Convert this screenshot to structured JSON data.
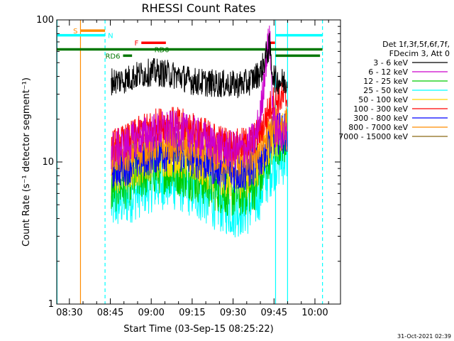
{
  "chart_data": {
    "type": "line",
    "title": "RHESSI Count Rates",
    "xlabel": "Start Time (03-Sep-15 08:25:22)",
    "ylabel": "Count Rate (s⁻¹ detector segment⁻¹)",
    "xlim_minutes": [
      0,
      104
    ],
    "ylim": [
      1,
      100
    ],
    "yscale": "log",
    "x_ticks": [
      {
        "label": "08:30",
        "minutes": 4.63
      },
      {
        "label": "08:45",
        "minutes": 19.63
      },
      {
        "label": "09:00",
        "minutes": 34.63
      },
      {
        "label": "09:15",
        "minutes": 49.63
      },
      {
        "label": "09:30",
        "minutes": 64.63
      },
      {
        "label": "09:45",
        "minutes": 79.63
      },
      {
        "label": "10:00",
        "minutes": 94.63
      }
    ],
    "y_ticks": [
      {
        "label": "1",
        "value": 1
      },
      {
        "label": "10",
        "value": 10
      },
      {
        "label": "100",
        "value": 100
      }
    ],
    "legend": {
      "placement": "right",
      "header": [
        "Det 1f,3f,5f,6f,7f,",
        "FDecim 3, Att 0"
      ]
    },
    "series": [
      {
        "name": "3 - 6 keV",
        "color": "#000000",
        "x": [
          20,
          25,
          30,
          35,
          40,
          45,
          50,
          55,
          60,
          65,
          70,
          73,
          75,
          76.5,
          78,
          79,
          80,
          82,
          84.5
        ],
        "y": [
          37,
          38,
          41,
          43,
          42,
          40,
          37,
          36,
          35.5,
          35,
          36,
          40,
          44,
          55,
          65,
          44,
          38,
          37,
          36
        ]
      },
      {
        "name": "6 - 12 keV",
        "color": "#cc00cc",
        "x": [
          20,
          25,
          30,
          35,
          40,
          45,
          50,
          55,
          60,
          65,
          70,
          73,
          75,
          76.5,
          78,
          79,
          80,
          82,
          84.5
        ],
        "y": [
          12,
          13,
          15,
          16,
          17,
          16.5,
          15.5,
          14,
          12.5,
          12,
          12.5,
          15,
          24,
          50,
          75,
          28,
          17,
          16,
          15
        ]
      },
      {
        "name": "12 - 25 keV",
        "color": "#00cc00",
        "x": [
          20,
          25,
          30,
          35,
          40,
          45,
          50,
          55,
          60,
          65,
          70,
          73,
          75,
          76.5,
          78,
          79,
          80,
          82,
          84.5
        ],
        "y": [
          6.5,
          7,
          8,
          8.8,
          9,
          8.6,
          8,
          7.2,
          6.5,
          6,
          6.3,
          7,
          8,
          9.5,
          12,
          13.5,
          14,
          14.5,
          14
        ]
      },
      {
        "name": "25 - 50 keV",
        "color": "#00ffff",
        "x": [
          20,
          25,
          30,
          35,
          40,
          45,
          50,
          55,
          60,
          65,
          70,
          73,
          75,
          76.5,
          78,
          79,
          80,
          82,
          84.5
        ],
        "y": [
          5,
          5.5,
          6.3,
          7,
          7.3,
          7,
          6.3,
          5.6,
          5,
          4.6,
          4.8,
          5.4,
          6.5,
          7.5,
          8.5,
          9.5,
          10,
          10.5,
          11
        ]
      },
      {
        "name": "50 - 100 keV",
        "color": "#ffd700",
        "x": [
          20,
          25,
          30,
          35,
          40,
          45,
          50,
          55,
          60,
          65,
          70,
          73,
          75,
          76.5,
          78,
          79,
          80,
          82,
          84.5
        ],
        "y": [
          8,
          8.5,
          9.5,
          10.5,
          11,
          10.7,
          10,
          9,
          8.2,
          7.6,
          8,
          9,
          10.5,
          12,
          13.5,
          14.5,
          15,
          15.5,
          16
        ]
      },
      {
        "name": "100 - 300 keV",
        "color": "#ff0000",
        "x": [
          20,
          25,
          30,
          35,
          40,
          45,
          50,
          55,
          60,
          65,
          70,
          73,
          75,
          76.5,
          78,
          79,
          80,
          82,
          84.5
        ],
        "y": [
          13,
          14,
          16,
          18,
          19,
          18.5,
          17,
          15.5,
          14,
          13,
          13.5,
          15,
          17,
          20,
          24,
          26,
          27,
          28,
          28
        ]
      },
      {
        "name": "300 - 800 keV",
        "color": "#0000ff",
        "x": [
          20,
          25,
          30,
          35,
          40,
          45,
          50,
          55,
          60,
          65,
          70,
          73,
          75,
          76.5,
          78,
          79,
          80,
          82,
          84.5
        ],
        "y": [
          9,
          9.5,
          10.5,
          11.5,
          12,
          11.7,
          11,
          10,
          9.2,
          8.5,
          8.8,
          9.8,
          11,
          12.5,
          14,
          15,
          15.5,
          16,
          16
        ]
      },
      {
        "name": "800 - 7000 keV",
        "color": "#ff8c00",
        "x": [
          20,
          25,
          30,
          35,
          40,
          45,
          50,
          55,
          60,
          65,
          70,
          73,
          75,
          76.5,
          78,
          79,
          80,
          82,
          84.5
        ],
        "y": [
          11,
          11.5,
          12.5,
          13.5,
          14,
          13.6,
          12.8,
          11.8,
          11,
          10.4,
          10.7,
          11.6,
          12.8,
          14.5,
          16,
          17,
          17.5,
          18,
          18
        ]
      },
      {
        "name": "7000 - 15000 keV",
        "color": "#8b6914",
        "x": [],
        "y": []
      }
    ],
    "annotations": {
      "vlines": [
        {
          "minutes": 0.1,
          "color": "#00ffff",
          "style": "solid"
        },
        {
          "minutes": 8.7,
          "color": "#ff8c00",
          "style": "solid"
        },
        {
          "minutes": 17.7,
          "color": "#00ffff",
          "style": "dashed"
        },
        {
          "minutes": 80.2,
          "color": "#00ffff",
          "style": "solid"
        },
        {
          "minutes": 84.6,
          "color": "#00ffff",
          "style": "solid"
        },
        {
          "minutes": 97.4,
          "color": "#00ffff",
          "style": "dashed"
        }
      ],
      "bars": [
        {
          "label": "S",
          "color": "#ff8c00",
          "x": [
            8.7,
            17.7
          ],
          "y": 84,
          "label_side": "left"
        },
        {
          "label": "N",
          "color": "#00ffff",
          "x": [
            0.1,
            17.7
          ],
          "y": 78,
          "label_side": "right"
        },
        {
          "label": "",
          "color": "#00ffff",
          "x": [
            80.2,
            97.4
          ],
          "y": 78,
          "label_side": "none"
        },
        {
          "label": "F",
          "color": "#ff0000",
          "x": [
            31,
            40
          ],
          "y": 69,
          "label_side": "left"
        },
        {
          "label": "",
          "color": "#ff0000",
          "x": [
            77.5,
            80
          ],
          "y": 69,
          "label_side": "none"
        },
        {
          "label": "RD0",
          "color": "#007700",
          "x": [
            0.1,
            97.4
          ],
          "y": 62,
          "label_side": "mid"
        },
        {
          "label": "RD6",
          "color": "#007700",
          "x": [
            24.3,
            27.6
          ],
          "y": 56,
          "label_side": "left"
        },
        {
          "label": "",
          "color": "#007700",
          "x": [
            80.2,
            96.5
          ],
          "y": 56,
          "label_side": "none"
        }
      ]
    }
  },
  "footer": {
    "timestamp": "31-Oct-2021 02:39"
  }
}
